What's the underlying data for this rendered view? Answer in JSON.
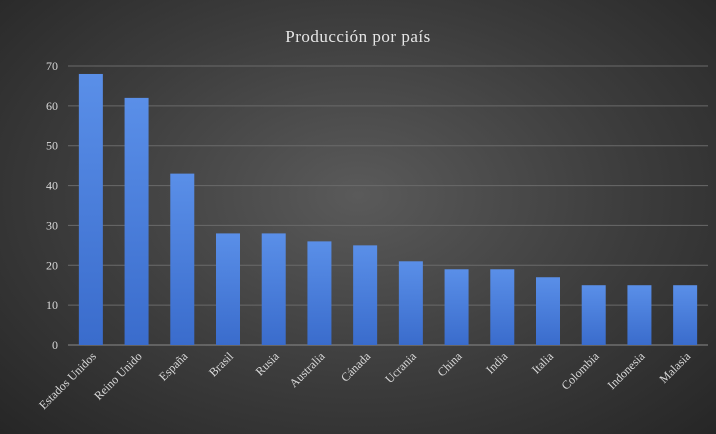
{
  "chart_data": {
    "type": "bar",
    "title": "Producción  por país",
    "xlabel": "",
    "ylabel": "",
    "ylim": [
      0,
      70
    ],
    "yticks": [
      0,
      10,
      20,
      30,
      40,
      50,
      60,
      70
    ],
    "grid": true,
    "legend": "none",
    "bar_color": "#4a7fdc",
    "categories": [
      "Estados Unidos",
      "Reino Unido",
      "España",
      "Brasil",
      "Rusia",
      "Australia",
      "Cánada",
      "Ucrania",
      "China",
      "India",
      "Italia",
      "Colombia",
      "Indonesia",
      "Malasia"
    ],
    "values": [
      68,
      62,
      43,
      28,
      28,
      26,
      25,
      21,
      19,
      19,
      17,
      15,
      15,
      15
    ]
  }
}
